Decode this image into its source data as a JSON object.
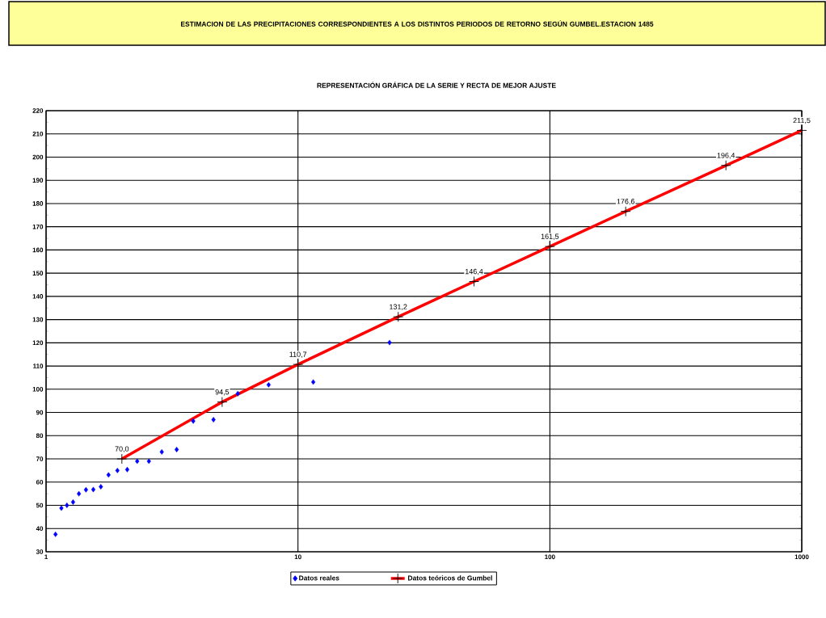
{
  "chart_data": {
    "type": "scatter",
    "title": "ESTIMACION DE LAS PRECIPITACIONES CORRESPONDIENTES A LOS DISTINTOS PERIODOS DE RETORNO SEGÚN GUMBEL.ESTACION 1485",
    "subtitle": "REPRESENTACIÓN GRÁFICA DE LA SERIE Y RECTA DE MEJOR AJUSTE",
    "series": [
      {
        "name": "Datos reales",
        "marker": "diamond",
        "color": "#0000ff",
        "x": [
          1.09,
          1.15,
          1.21,
          1.28,
          1.35,
          1.44,
          1.54,
          1.65,
          1.77,
          1.92,
          2.1,
          2.3,
          2.56,
          2.88,
          3.3,
          3.84,
          4.62,
          5.77,
          7.65,
          11.5,
          23.1
        ],
        "values": [
          37.5,
          48.8,
          50.0,
          51.4,
          55.0,
          56.7,
          56.8,
          58.0,
          63.1,
          65.0,
          65.4,
          69.0,
          69.0,
          73.0,
          74.0,
          86.3,
          86.9,
          98.1,
          101.9,
          103.1,
          120.1
        ]
      },
      {
        "name": "Datos teóricos de Gumbel",
        "type": "line",
        "marker": "cross",
        "line_style": "solid",
        "color": "#ff0000",
        "x": [
          2,
          5,
          10,
          25,
          50,
          100,
          200,
          500,
          1000
        ],
        "values": [
          70.0,
          94.5,
          110.7,
          131.2,
          146.4,
          161.5,
          176.6,
          196.4,
          211.5
        ],
        "value_labels": [
          "70,0",
          "94,5",
          "110,7",
          "131,2",
          "146,4",
          "161,5",
          "176,6",
          "196,4",
          "211,5"
        ]
      }
    ],
    "log": "x",
    "xlim": [
      1,
      1000
    ],
    "xticks": [
      1,
      10,
      100,
      1000
    ],
    "ylim": [
      30,
      220
    ],
    "yticks": [
      30,
      40,
      50,
      60,
      70,
      80,
      90,
      100,
      110,
      120,
      130,
      140,
      150,
      160,
      170,
      180,
      190,
      200,
      210,
      220
    ],
    "grid": true,
    "legend": "bottom"
  }
}
